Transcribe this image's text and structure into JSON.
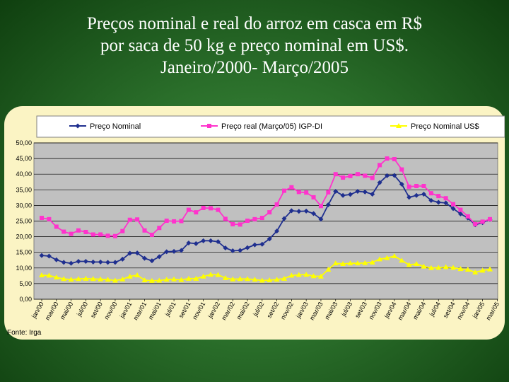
{
  "title": {
    "line1": "Preços nominal e real do arroz em casca em R$",
    "line2": "por saca de 50 kg e preço nominal em US$.",
    "line3": "Janeiro/2000- Março/2005"
  },
  "source": "Fonte: Irga",
  "colors": {
    "nominal": "#1f2f8f",
    "real": "#ff33cc",
    "usd": "#ffff00",
    "plot_bg": "#c0c0c0",
    "card_bg": "#fbf4c4"
  },
  "chart_data": {
    "type": "line",
    "title": "",
    "xlabel": "",
    "ylabel": "",
    "ylim": [
      0,
      50
    ],
    "yticks": [
      "0,00",
      "5,00",
      "10,00",
      "15,00",
      "20,00",
      "25,00",
      "30,00",
      "35,00",
      "40,00",
      "45,00",
      "50,00"
    ],
    "grid": true,
    "legend_position": "top",
    "x_tick_labels": [
      "jan/00",
      "mar/00",
      "mai/00",
      "jul/00",
      "set/00",
      "nov/00",
      "jan/01",
      "mar/01",
      "mai/01",
      "jul/01",
      "set/01",
      "nov/01",
      "jan/02",
      "mar/02",
      "mai/02",
      "jul/02",
      "set/02",
      "nov/02",
      "jan/03",
      "mar/03",
      "mai/03",
      "jul/03",
      "set/03",
      "nov/03",
      "jan/04",
      "mar/04",
      "mai/04",
      "jul/04",
      "set/04",
      "nov/04",
      "jan/05",
      "mar/05"
    ],
    "series": [
      {
        "name": "Preço Nominal",
        "marker": "diamond",
        "values": [
          14.0,
          13.8,
          12.6,
          11.8,
          11.5,
          12.1,
          12.1,
          11.9,
          11.9,
          11.8,
          11.8,
          12.8,
          14.7,
          14.8,
          13.1,
          12.3,
          13.6,
          15.2,
          15.3,
          15.6,
          18.0,
          17.8,
          18.7,
          18.7,
          18.4,
          16.4,
          15.5,
          15.6,
          16.5,
          17.4,
          17.6,
          19.3,
          21.8,
          25.8,
          28.3,
          28.1,
          28.2,
          27.4,
          25.6,
          30.2,
          34.5,
          33.2,
          33.5,
          34.5,
          34.3,
          33.6,
          37.3,
          39.5,
          39.6,
          36.8,
          32.6,
          33.2,
          33.6,
          31.6,
          31.0,
          30.8,
          29.0,
          27.3,
          26.0,
          23.8,
          24.5,
          25.5
        ]
      },
      {
        "name": "Preço real (Março/05) IGP-DI",
        "marker": "square",
        "values": [
          26.0,
          25.6,
          23.2,
          21.6,
          20.9,
          22.0,
          21.5,
          20.7,
          20.7,
          20.3,
          20.2,
          21.8,
          25.4,
          25.5,
          22.0,
          20.6,
          22.8,
          25.1,
          24.9,
          25.0,
          28.6,
          27.8,
          29.2,
          29.1,
          28.6,
          25.7,
          24.0,
          23.9,
          25.1,
          25.6,
          26.0,
          27.8,
          30.3,
          34.7,
          35.8,
          34.3,
          34.1,
          32.6,
          29.8,
          34.2,
          40.0,
          38.9,
          39.4,
          40.0,
          39.5,
          38.8,
          42.9,
          45.0,
          44.8,
          41.5,
          36.0,
          36.2,
          36.2,
          33.9,
          33.0,
          32.3,
          30.4,
          28.6,
          26.5,
          24.0,
          24.8,
          25.6
        ]
      },
      {
        "name": "Preço Nominal US$",
        "marker": "triangle",
        "values": [
          7.7,
          7.6,
          7.0,
          6.5,
          6.3,
          6.5,
          6.6,
          6.5,
          6.4,
          6.3,
          6.0,
          6.4,
          7.3,
          7.7,
          6.1,
          5.9,
          6.0,
          6.3,
          6.4,
          6.2,
          6.6,
          6.6,
          7.3,
          7.9,
          7.8,
          6.8,
          6.4,
          6.5,
          6.5,
          6.3,
          6.0,
          6.1,
          6.3,
          6.6,
          7.6,
          7.8,
          7.9,
          7.4,
          7.3,
          9.5,
          11.5,
          11.3,
          11.5,
          11.5,
          11.6,
          11.8,
          12.8,
          13.2,
          13.8,
          12.4,
          11.0,
          11.3,
          10.5,
          10.0,
          10.1,
          10.3,
          10.1,
          9.7,
          9.5,
          8.6,
          9.2,
          9.6
        ]
      }
    ]
  }
}
